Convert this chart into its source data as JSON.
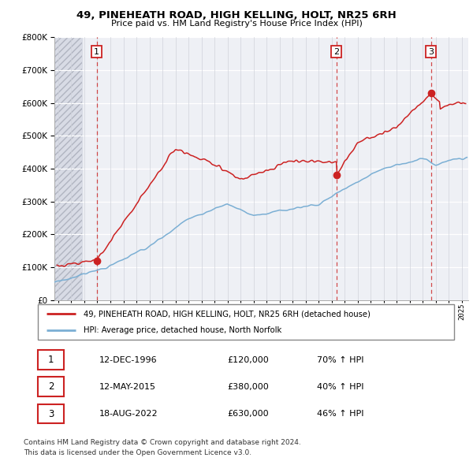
{
  "title_line1": "49, PINEHEATH ROAD, HIGH KELLING, HOLT, NR25 6RH",
  "title_line2": "Price paid vs. HM Land Registry's House Price Index (HPI)",
  "ylim": [
    0,
    800000
  ],
  "yticks": [
    0,
    100000,
    200000,
    300000,
    400000,
    500000,
    600000,
    700000,
    800000
  ],
  "ytick_labels": [
    "£0",
    "£100K",
    "£200K",
    "£300K",
    "£400K",
    "£500K",
    "£600K",
    "£700K",
    "£800K"
  ],
  "xlim_start": 1993.7,
  "xlim_end": 2025.5,
  "sale_dates": [
    1996.95,
    2015.36,
    2022.63
  ],
  "sale_prices": [
    120000,
    380000,
    630000
  ],
  "sale_labels": [
    "1",
    "2",
    "3"
  ],
  "hpi_color": "#7bafd4",
  "property_color": "#cc2222",
  "background_color": "#eef0f5",
  "grid_color": "#ffffff",
  "legend_label_property": "49, PINEHEATH ROAD, HIGH KELLING, HOLT, NR25 6RH (detached house)",
  "legend_label_hpi": "HPI: Average price, detached house, North Norfolk",
  "table_rows": [
    [
      "1",
      "12-DEC-1996",
      "£120,000",
      "70% ↑ HPI"
    ],
    [
      "2",
      "12-MAY-2015",
      "£380,000",
      "40% ↑ HPI"
    ],
    [
      "3",
      "18-AUG-2022",
      "£630,000",
      "46% ↑ HPI"
    ]
  ],
  "footnote_line1": "Contains HM Land Registry data © Crown copyright and database right 2024.",
  "footnote_line2": "This data is licensed under the Open Government Licence v3.0."
}
